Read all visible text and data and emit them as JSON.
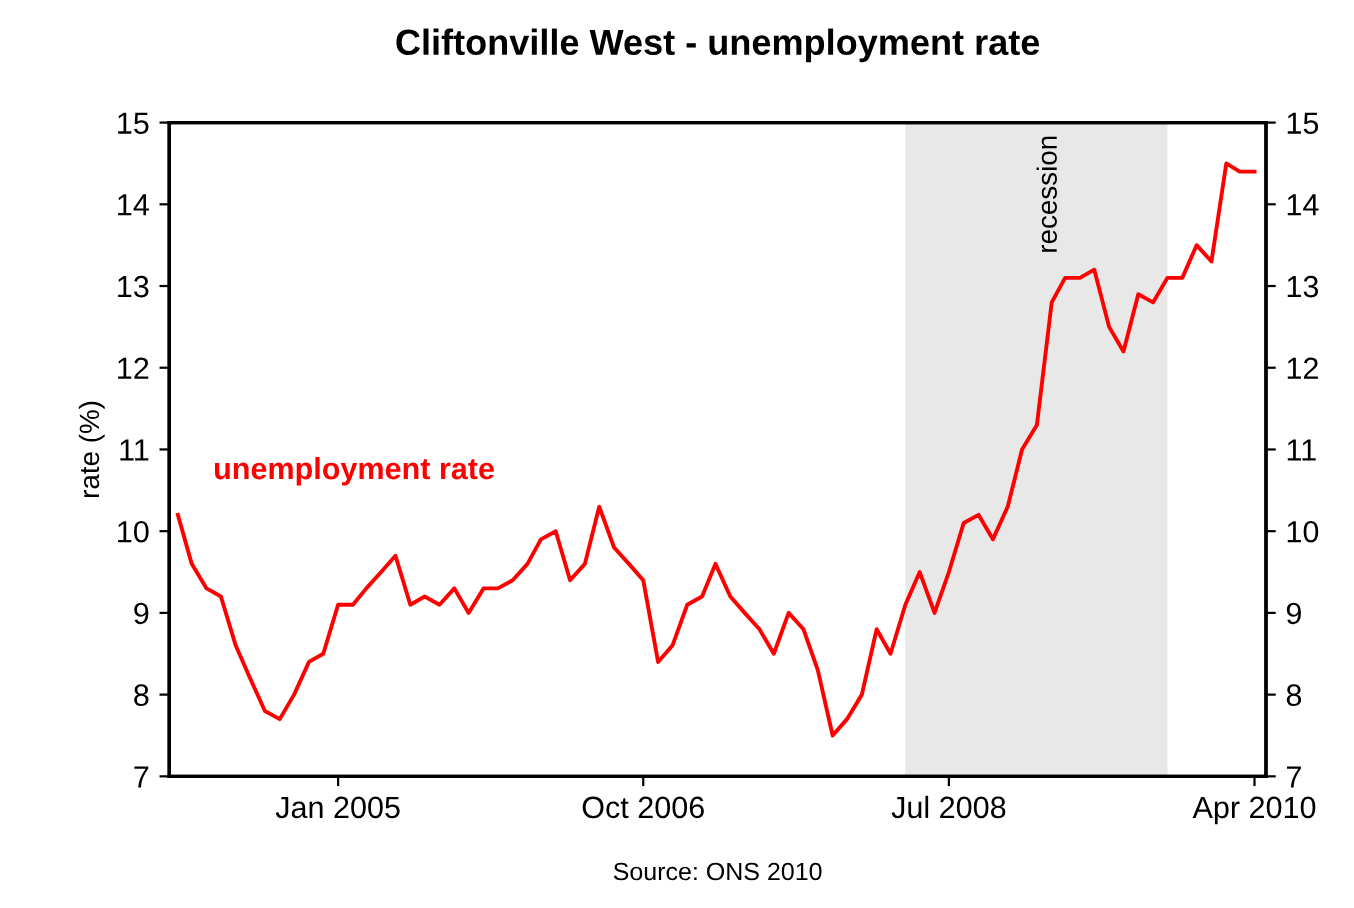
{
  "chart_data": {
    "type": "line",
    "title": "Cliftonville West - unemployment rate",
    "ylabel": "rate (%)",
    "x": [
      "2004-02",
      "2004-03",
      "2004-04",
      "2004-05",
      "2004-06",
      "2004-07",
      "2004-08",
      "2004-09",
      "2004-10",
      "2004-11",
      "2004-12",
      "2005-01",
      "2005-02",
      "2005-03",
      "2005-04",
      "2005-05",
      "2005-06",
      "2005-07",
      "2005-08",
      "2005-09",
      "2005-10",
      "2005-11",
      "2005-12",
      "2006-01",
      "2006-02",
      "2006-03",
      "2006-04",
      "2006-05",
      "2006-06",
      "2006-07",
      "2006-08",
      "2006-09",
      "2006-10",
      "2006-11",
      "2006-12",
      "2007-01",
      "2007-02",
      "2007-03",
      "2007-04",
      "2007-05",
      "2007-06",
      "2007-07",
      "2007-08",
      "2007-09",
      "2007-10",
      "2007-11",
      "2007-12",
      "2008-01",
      "2008-02",
      "2008-03",
      "2008-04",
      "2008-05",
      "2008-06",
      "2008-07",
      "2008-08",
      "2008-09",
      "2008-10",
      "2008-11",
      "2008-12",
      "2009-01",
      "2009-02",
      "2009-03",
      "2009-04",
      "2009-05",
      "2009-06",
      "2009-07",
      "2009-08",
      "2009-09",
      "2009-10",
      "2009-11",
      "2009-12",
      "2010-01",
      "2010-02",
      "2010-03",
      "2010-04"
    ],
    "series": [
      {
        "name": "unemployment rate",
        "color": "#ff0000",
        "values": [
          10.2,
          9.6,
          9.3,
          9.2,
          8.6,
          8.2,
          7.8,
          7.7,
          8.0,
          8.4,
          8.5,
          9.1,
          9.1,
          9.3,
          9.5,
          9.7,
          9.1,
          9.2,
          9.1,
          9.3,
          9.0,
          9.3,
          9.3,
          9.4,
          9.6,
          9.9,
          10.0,
          9.4,
          9.6,
          10.3,
          9.8,
          9.6,
          9.4,
          8.4,
          8.6,
          9.1,
          9.2,
          9.6,
          9.2,
          9.0,
          8.8,
          8.5,
          9.0,
          8.8,
          8.3,
          7.5,
          7.7,
          8.0,
          8.8,
          8.5,
          9.1,
          9.5,
          9.0,
          9.5,
          10.1,
          10.2,
          9.9,
          10.3,
          11.0,
          11.3,
          12.8,
          13.1,
          13.1,
          13.2,
          12.5,
          12.2,
          12.9,
          12.8,
          13.1,
          13.1,
          13.5,
          13.3,
          14.5,
          14.4,
          14.4
        ]
      }
    ],
    "xlim": [
      "2004-01-14",
      "2010-04-25"
    ],
    "xticks": [
      {
        "value": "2005-01",
        "label": "Jan 2005"
      },
      {
        "value": "2006-10",
        "label": "Oct 2006"
      },
      {
        "value": "2008-07",
        "label": "Jul 2008"
      },
      {
        "value": "2010-04",
        "label": "Apr 2010"
      }
    ],
    "ylim": [
      7,
      15
    ],
    "yticks": [
      7,
      8,
      9,
      10,
      11,
      12,
      13,
      14,
      15
    ],
    "y2lim": [
      7,
      15
    ],
    "y2ticks": [
      7,
      8,
      9,
      10,
      11,
      12,
      13,
      14,
      15
    ],
    "bands": [
      {
        "axis": "x",
        "from": "2008-04",
        "to": "2009-10",
        "label": "recession",
        "color": "#e8e8e8"
      }
    ],
    "annotations": [
      "Source: ONS 2010"
    ],
    "grid": false,
    "legend": "left",
    "line_style": "solid",
    "marker": "none"
  }
}
